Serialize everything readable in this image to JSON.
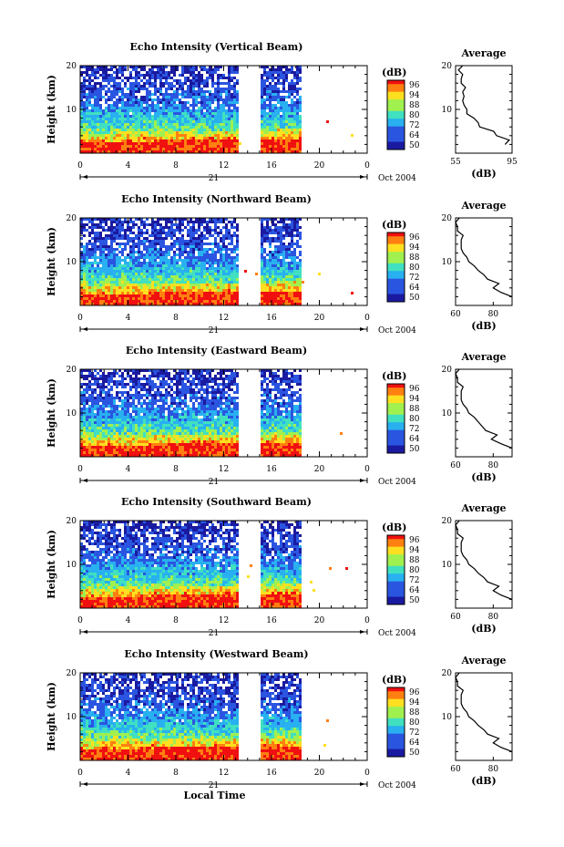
{
  "panels": [
    {
      "title": "Echo Intensity (Vertical Beam)",
      "profile_title": "Average",
      "profile_xticks": [
        "55",
        "95"
      ],
      "profile_xlim": [
        55,
        95
      ],
      "profile_y": [
        2,
        3,
        4,
        5,
        6,
        7,
        8,
        9,
        10,
        11,
        12,
        13,
        14,
        15,
        16,
        17,
        18,
        19,
        20
      ],
      "profile_x": [
        90,
        93,
        84,
        82,
        72,
        71,
        68,
        63,
        63,
        61,
        60,
        61,
        60,
        62,
        59,
        59,
        60,
        57,
        60
      ]
    },
    {
      "title": "Echo Intensity (Northward Beam)",
      "profile_title": "Average",
      "profile_xticks": [
        "60",
        "80"
      ],
      "profile_xlim": [
        60,
        90
      ],
      "profile_y": [
        2,
        3,
        4,
        5,
        6,
        7,
        8,
        9,
        10,
        11,
        12,
        13,
        14,
        15,
        16,
        17,
        18,
        19,
        20
      ],
      "profile_x": [
        90,
        84,
        80,
        83,
        77,
        75,
        72,
        70,
        67,
        66,
        64,
        63,
        63,
        63,
        64,
        61,
        61,
        60,
        62
      ]
    },
    {
      "title": "Echo Intensity (Eastward Beam)",
      "profile_title": "Average",
      "profile_xticks": [
        "60",
        "80"
      ],
      "profile_xlim": [
        60,
        90
      ],
      "profile_y": [
        2,
        3,
        4,
        5,
        6,
        7,
        8,
        9,
        10,
        11,
        12,
        13,
        14,
        15,
        16,
        17,
        18,
        19,
        20
      ],
      "profile_x": [
        90,
        84,
        79,
        82,
        76,
        74,
        72,
        70,
        67,
        66,
        64,
        63,
        63,
        63,
        64,
        61,
        61,
        60,
        62
      ]
    },
    {
      "title": "Echo Intensity (Southward Beam)",
      "profile_title": "Average",
      "profile_xticks": [
        "60",
        "80"
      ],
      "profile_xlim": [
        60,
        90
      ],
      "profile_y": [
        2,
        3,
        4,
        5,
        6,
        7,
        8,
        9,
        10,
        11,
        12,
        13,
        14,
        15,
        16,
        17,
        18,
        19,
        20
      ],
      "profile_x": [
        90,
        84,
        80,
        83,
        77,
        75,
        72,
        70,
        67,
        66,
        64,
        63,
        63,
        63,
        64,
        61,
        61,
        60,
        62
      ]
    },
    {
      "title": "Echo Intensity (Westward Beam)",
      "profile_title": "Average",
      "profile_xticks": [
        "60",
        "80"
      ],
      "profile_xlim": [
        60,
        90
      ],
      "profile_y": [
        2,
        3,
        4,
        5,
        6,
        7,
        8,
        9,
        10,
        11,
        12,
        13,
        14,
        15,
        16,
        17,
        18,
        19,
        20
      ],
      "profile_x": [
        90,
        84,
        80,
        83,
        77,
        75,
        72,
        70,
        67,
        66,
        64,
        63,
        63,
        63,
        64,
        61,
        61,
        60,
        62
      ]
    }
  ],
  "height_label": "Height (km)",
  "height_ticks": [
    "10",
    "20"
  ],
  "time_ticks": [
    "0",
    "4",
    "8",
    "12",
    "16",
    "20",
    "0"
  ],
  "day_label": "21",
  "date_label": "Oct 2004",
  "colorbar_unit": "(dB)",
  "colorbar_ticks": [
    "50",
    "64",
    "72",
    "80",
    "88",
    "94",
    "96"
  ],
  "profile_unit": "(dB)",
  "xlabel": "Local Time",
  "chart_data": {
    "type": "heatmap",
    "x_unit": "hours (local time), 21 Oct 2004",
    "xlim": [
      0,
      24
    ],
    "ylim": [
      2,
      20
    ],
    "no_data_intervals": [
      [
        13.3,
        15.0
      ],
      [
        18.5,
        24
      ]
    ],
    "color_scale": [
      {
        "level": 50,
        "color": "#1a1aa0"
      },
      {
        "level": 60,
        "color": "#2a55e0"
      },
      {
        "level": 68,
        "color": "#28b0f0"
      },
      {
        "level": 74,
        "color": "#40e0c0"
      },
      {
        "level": 80,
        "color": "#a0f050"
      },
      {
        "level": 86,
        "color": "#ffe020"
      },
      {
        "level": 92,
        "color": "#ff8010"
      },
      {
        "level": 96,
        "color": "#f01010"
      }
    ]
  }
}
